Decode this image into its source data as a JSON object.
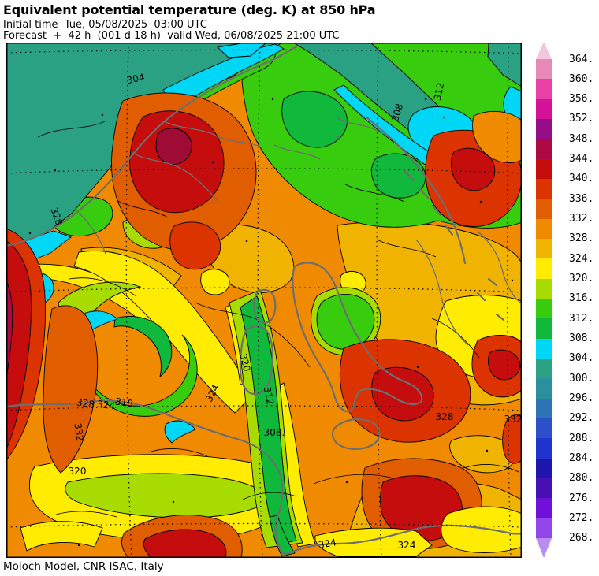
{
  "header": {
    "title": "Equivalent potential temperature (deg. K) at 850 hPa",
    "initial_time_line": "Initial time  Tue, 05/08/2025  03:00 UTC",
    "forecast_line": "Forecast  +  42 h  (001 d 18 h)  valid Wed, 06/08/2025 21:00 UTC"
  },
  "footer": {
    "attribution": "Moloch Model, CNR-ISAC, Italy"
  },
  "chart_data": {
    "type": "heatmap",
    "title": "Equivalent potential temperature (deg. K) at 850 hPa",
    "variable": "Equivalent potential temperature",
    "units": "deg. K",
    "level": "850 hPa",
    "initial_time": "Tue, 05/08/2025 03:00 UTC",
    "forecast_step": "+ 42 h (001 d 18 h)",
    "valid_time": "Wed, 06/08/2025 21:00 UTC",
    "model": "Moloch Model, CNR-ISAC, Italy",
    "fill_interval": 4,
    "colorbar": {
      "orientation": "vertical",
      "tick_labels": [
        "364.",
        "360.",
        "356.",
        "352.",
        "348.",
        "344.",
        "340.",
        "336.",
        "332.",
        "328.",
        "324.",
        "320.",
        "316.",
        "312.",
        "308.",
        "304.",
        "300.",
        "296.",
        "292.",
        "288.",
        "284.",
        "280.",
        "276.",
        "272.",
        "268."
      ],
      "tick_values": [
        364,
        360,
        356,
        352,
        348,
        344,
        340,
        336,
        332,
        328,
        324,
        320,
        316,
        312,
        308,
        304,
        300,
        296,
        292,
        288,
        284,
        280,
        276,
        272,
        268
      ],
      "segment_colors_top_to_bottom": [
        "#E78AB7",
        "#EA3FA4",
        "#D31199",
        "#970D87",
        "#AD0A45",
        "#C60D0D",
        "#DC3400",
        "#E05E00",
        "#F08A00",
        "#F0B400",
        "#FFEC00",
        "#A8DC00",
        "#38CC0E",
        "#10B93C",
        "#00D6F6",
        "#2BA183",
        "#2B8F9E",
        "#2E74B5",
        "#2B50C8",
        "#2133CD",
        "#1C16AD",
        "#4611B3",
        "#6F11D9",
        "#9046E8"
      ],
      "over_color": "#F2C6DD",
      "under_color": "#BA8BF0"
    },
    "map_style": {
      "coastline_color": "#6E6E6E",
      "contour_color": "#000000",
      "grid_style": "dotted black lat-lon lines"
    },
    "contour_labels": [
      {
        "text": "304"
      },
      {
        "text": "308"
      },
      {
        "text": "312"
      },
      {
        "text": "328"
      },
      {
        "text": "332"
      },
      {
        "text": "328"
      },
      {
        "text": "324"
      },
      {
        "text": "318"
      },
      {
        "text": "320"
      },
      {
        "text": "324"
      },
      {
        "text": "320"
      },
      {
        "text": "312"
      },
      {
        "text": "308."
      },
      {
        "text": "328"
      },
      {
        "text": "332"
      },
      {
        "text": "324"
      },
      {
        "text": "324"
      }
    ]
  }
}
